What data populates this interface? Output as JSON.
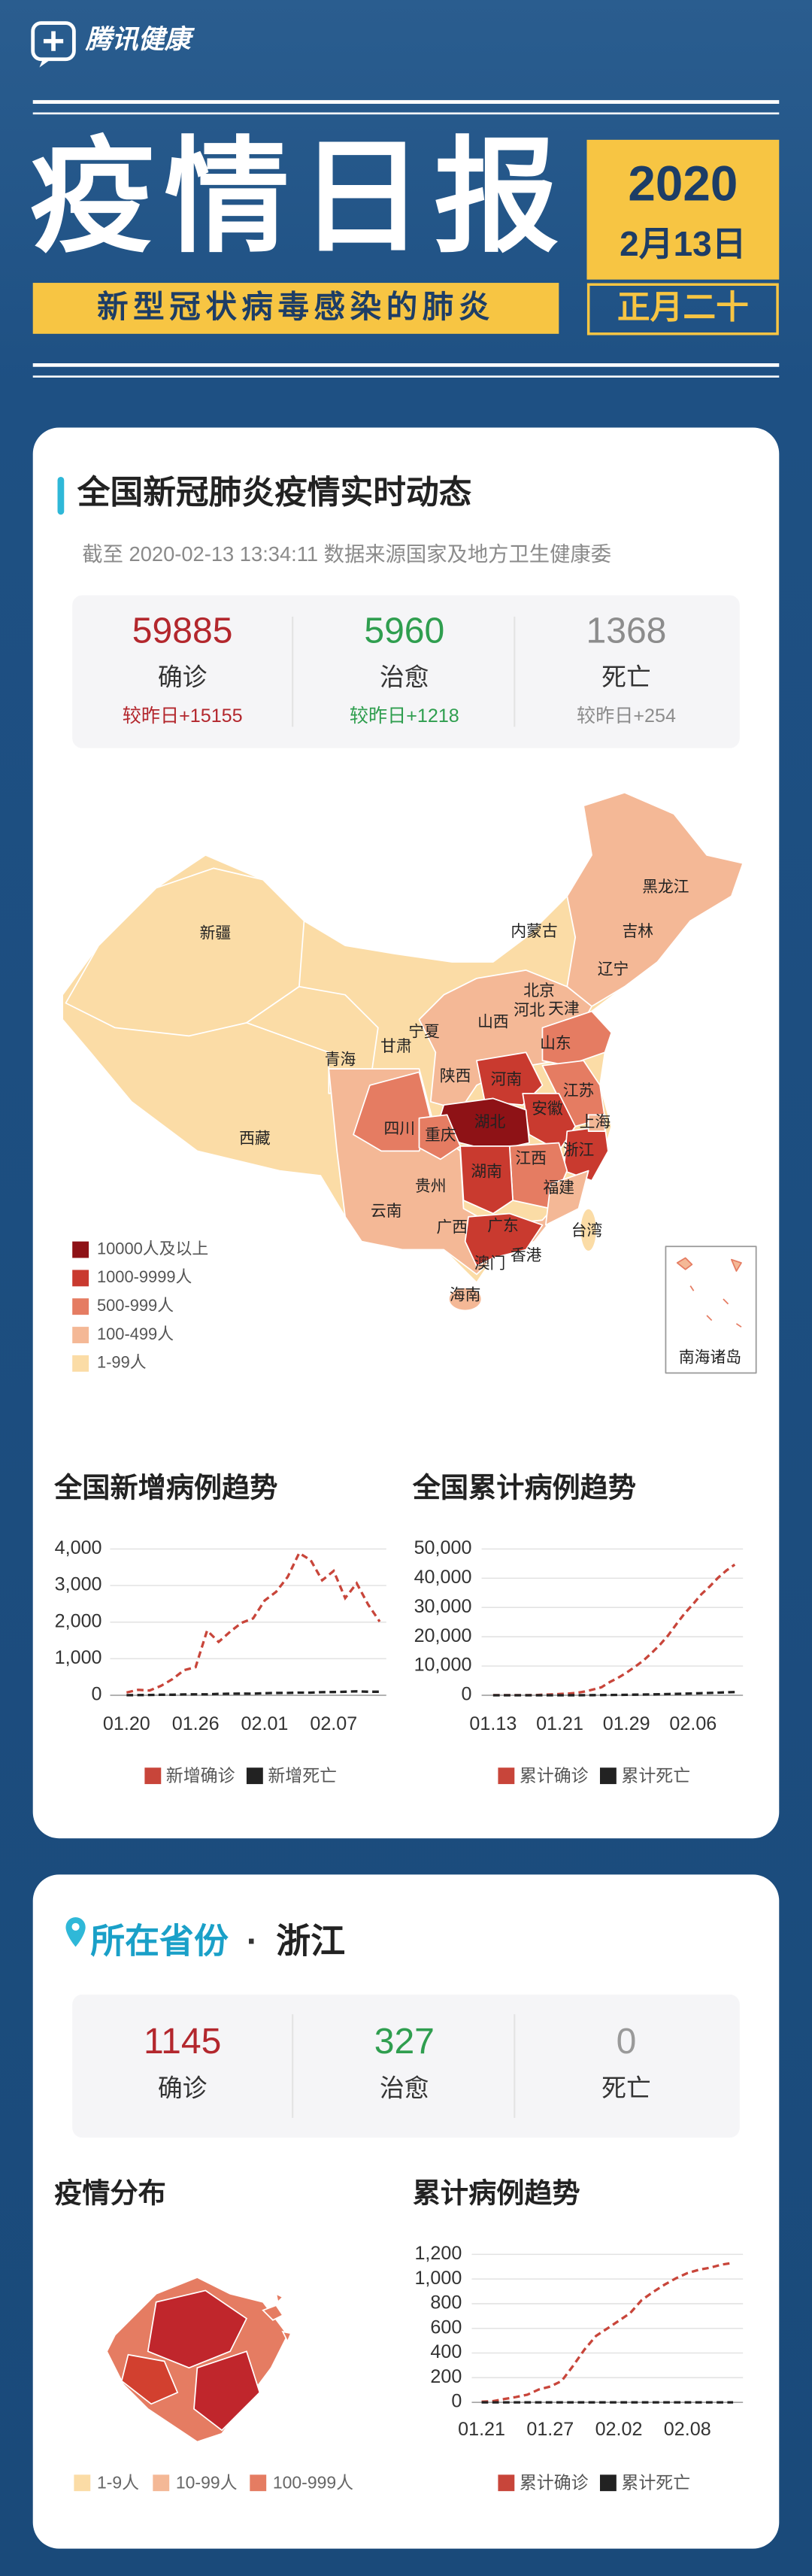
{
  "header": {
    "brand": "腾讯健康",
    "title": "疫情日报",
    "subtitle": "新型冠状病毒感染的肺炎",
    "year": "2020",
    "date": "2月13日",
    "lunar": "正月二十"
  },
  "national": {
    "title": "全国新冠肺炎疫情实时动态",
    "source": "截至 2020-02-13 13:34:11 数据来源国家及地方卫生健康委",
    "stats": [
      {
        "value": 59885,
        "label": "确诊",
        "delta": "较昨日+15155",
        "color": "#b3272d"
      },
      {
        "value": 5960,
        "label": "治愈",
        "delta": "较昨日+1218",
        "color": "#2f9e4f"
      },
      {
        "value": 1368,
        "label": "死亡",
        "delta": "较昨日+254",
        "color": "#8c8c8c"
      }
    ],
    "map": {
      "regions": [
        "新疆",
        "西藏",
        "青海",
        "甘肃",
        "宁夏",
        "内蒙古",
        "黑龙江",
        "吉林",
        "辽宁",
        "北京",
        "天津",
        "河北",
        "山西",
        "陕西",
        "山东",
        "河南",
        "江苏",
        "安徽",
        "湖北",
        "上海",
        "重庆",
        "四川",
        "浙江",
        "江西",
        "湖南",
        "贵州",
        "福建",
        "云南",
        "广西",
        "广东",
        "台湾",
        "香港",
        "澳门",
        "海南",
        "南海诸岛"
      ],
      "legend": [
        {
          "label": "10000人及以上",
          "color": "#8e1216"
        },
        {
          "label": "1000-9999人",
          "color": "#c93a2f"
        },
        {
          "label": "500-999人",
          "color": "#e57c62"
        },
        {
          "label": "100-499人",
          "color": "#f4b896"
        },
        {
          "label": "1-99人",
          "color": "#fbdca6"
        }
      ]
    }
  },
  "province": {
    "title": "所在省份",
    "separator": "·",
    "name": "浙江",
    "stats": [
      {
        "value": 1145,
        "label": "确诊",
        "color": "#b3272d"
      },
      {
        "value": 327,
        "label": "治愈",
        "color": "#2f9e4f"
      },
      {
        "value": 0,
        "label": "死亡",
        "color": "#9a9a9a"
      }
    ],
    "map_title": "疫情分布",
    "legend": [
      {
        "label": "1-9人",
        "color": "#fbdca6"
      },
      {
        "label": "10-99人",
        "color": "#f4b896"
      },
      {
        "label": "100-999人",
        "color": "#e57c62"
      }
    ]
  },
  "chart_data": [
    {
      "type": "line",
      "title": "全国新增病例趋势",
      "grid": true,
      "line_style": "dashed",
      "legend": "bottom",
      "categories": [
        "01.20",
        null,
        null,
        null,
        null,
        null,
        "01.26",
        null,
        null,
        null,
        null,
        null,
        "02.01",
        null,
        null,
        null,
        null,
        null,
        "02.07",
        null,
        null,
        null,
        null
      ],
      "series": [
        {
          "name": "新增确诊",
          "color": "#c8453a",
          "values": [
            77,
            149,
            131,
            259,
            444,
            688,
            769,
            1771,
            1459,
            1737,
            1982,
            2102,
            2590,
            2829,
            3235,
            3887,
            3694,
            3143,
            3399,
            2656,
            3062,
            2478,
            2015
          ]
        },
        {
          "name": "新增死亡",
          "color": "#222222",
          "values": [
            3,
            6,
            8,
            16,
            15,
            24,
            26,
            26,
            38,
            43,
            46,
            45,
            57,
            64,
            65,
            73,
            73,
            86,
            89,
            97,
            108,
            97,
            97
          ]
        }
      ],
      "ylim": [
        0,
        4000
      ],
      "yticks": [
        0,
        {
          "value": 1000,
          "label": "1,000"
        },
        {
          "value": 2000,
          "label": "2,000"
        },
        {
          "value": 3000,
          "label": "3,000"
        },
        {
          "value": 4000,
          "label": "4,000"
        }
      ]
    },
    {
      "type": "line",
      "title": "全国累计病例趋势",
      "grid": true,
      "line_style": "dashed",
      "legend": "bottom",
      "categories": [
        "01.13",
        null,
        null,
        null,
        null,
        null,
        null,
        null,
        "01.21",
        null,
        null,
        null,
        null,
        null,
        null,
        null,
        "01.29",
        null,
        null,
        null,
        null,
        null,
        null,
        null,
        "02.06",
        null,
        null,
        null,
        null,
        null
      ],
      "series": [
        {
          "name": "累计确诊",
          "color": "#c8453a",
          "values": [
            41,
            41,
            41,
            41,
            45,
            62,
            198,
            291,
            440,
            571,
            830,
            1287,
            1975,
            2744,
            4515,
            5974,
            7711,
            9692,
            11791,
            14380,
            17205,
            20438,
            24324,
            28018,
            31161,
            34546,
            37198,
            40171,
            42638,
            44653
          ]
        },
        {
          "name": "累计死亡",
          "color": "#222222",
          "values": [
            1,
            1,
            1,
            2,
            2,
            2,
            3,
            6,
            9,
            17,
            25,
            41,
            56,
            80,
            106,
            132,
            170,
            213,
            259,
            304,
            361,
            425,
            490,
            563,
            636,
            722,
            811,
            908,
            1016,
            1113
          ]
        }
      ],
      "ylim": [
        0,
        50000
      ],
      "yticks": [
        0,
        {
          "value": 10000,
          "label": "10,000"
        },
        {
          "value": 20000,
          "label": "20,000"
        },
        {
          "value": 30000,
          "label": "30,000"
        },
        {
          "value": 40000,
          "label": "40,000"
        },
        {
          "value": 50000,
          "label": "50,000"
        }
      ]
    },
    {
      "type": "line",
      "title": "累计病例趋势",
      "grid": true,
      "line_style": "dashed",
      "legend": "bottom",
      "categories": [
        "01.21",
        null,
        null,
        null,
        null,
        null,
        "01.27",
        null,
        null,
        null,
        null,
        null,
        "02.02",
        null,
        null,
        null,
        null,
        null,
        "02.08",
        null,
        null,
        null,
        null
      ],
      "series": [
        {
          "name": "累计确诊",
          "color": "#c8453a",
          "values": [
            5,
            10,
            27,
            43,
            62,
            104,
            128,
            173,
            296,
            428,
            538,
            599,
            661,
            724,
            829,
            895,
            954,
            1006,
            1048,
            1075,
            1092,
            1117,
            1131
          ]
        },
        {
          "name": "累计死亡",
          "color": "#222222",
          "values": [
            0,
            0,
            0,
            0,
            0,
            0,
            0,
            0,
            0,
            0,
            0,
            0,
            0,
            0,
            0,
            0,
            0,
            0,
            0,
            0,
            0,
            0,
            0
          ]
        }
      ],
      "ylim": [
        0,
        1200
      ],
      "yticks": [
        0,
        200,
        400,
        600,
        800,
        {
          "value": 1000,
          "label": "1,000"
        },
        {
          "value": 1200,
          "label": "1,200"
        }
      ]
    }
  ]
}
